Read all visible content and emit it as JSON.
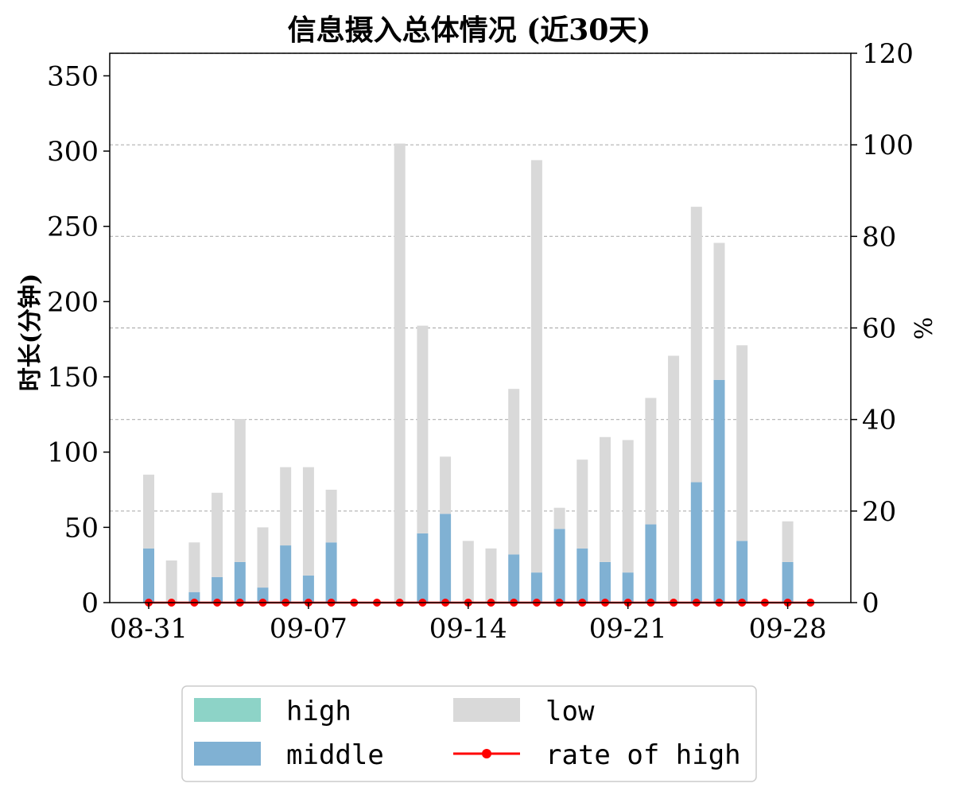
{
  "chart_data": {
    "type": "bar",
    "title": "信息摄入总体情况 (近30天)",
    "ylabel": "时长(分钟)",
    "y2label": "%",
    "ylim": [
      0,
      365
    ],
    "y2lim": [
      0,
      120
    ],
    "yticks": [
      0,
      50,
      100,
      150,
      200,
      250,
      300,
      350
    ],
    "y2ticks": [
      0,
      20,
      40,
      60,
      80,
      100,
      120
    ],
    "grid": "right-axis horizontal dashed",
    "stacked": true,
    "dates": [
      "08-31",
      "09-01",
      "09-02",
      "09-03",
      "09-04",
      "09-05",
      "09-06",
      "09-07",
      "09-08",
      "09-09",
      "09-10",
      "09-11",
      "09-12",
      "09-13",
      "09-14",
      "09-15",
      "09-16",
      "09-17",
      "09-18",
      "09-19",
      "09-20",
      "09-21",
      "09-22",
      "09-23",
      "09-24",
      "09-25",
      "09-26",
      "09-27",
      "09-28",
      "09-29"
    ],
    "xtick_labels": [
      "08-31",
      "09-07",
      "09-14",
      "09-21",
      "09-28"
    ],
    "series": [
      {
        "name": "high",
        "axis": "left",
        "color": "#8dd3c7",
        "values": [
          0,
          0,
          0,
          0,
          0,
          0,
          0,
          0,
          0,
          0,
          0,
          0,
          0,
          0,
          0,
          0,
          0,
          0,
          0,
          0,
          0,
          0,
          0,
          0,
          0,
          0,
          0,
          0,
          0,
          0
        ]
      },
      {
        "name": "middle",
        "axis": "left",
        "color": "#80b1d3",
        "values": [
          36,
          0,
          7,
          17,
          27,
          10,
          38,
          18,
          40,
          0,
          0,
          0,
          46,
          59,
          0,
          0,
          32,
          20,
          49,
          36,
          27,
          20,
          52,
          0,
          80,
          148,
          41,
          0,
          27,
          0
        ]
      },
      {
        "name": "low",
        "axis": "left",
        "color": "#d9d9d9",
        "values": [
          49,
          28,
          33,
          56,
          95,
          40,
          52,
          72,
          35,
          0,
          0,
          305,
          138,
          38,
          41,
          36,
          110,
          274,
          14,
          59,
          83,
          88,
          84,
          164,
          183,
          91,
          130,
          0,
          27,
          0
        ]
      },
      {
        "name": "rate of high",
        "axis": "right",
        "type": "line",
        "color": "#ff0000",
        "values": [
          0,
          0,
          0,
          0,
          0,
          0,
          0,
          0,
          0,
          0,
          0,
          0,
          0,
          0,
          0,
          0,
          0,
          0,
          0,
          0,
          0,
          0,
          0,
          0,
          0,
          0,
          0,
          0,
          0,
          0
        ]
      }
    ],
    "legend": {
      "position": "bottom-center",
      "columns": 2,
      "order": [
        "high",
        "low",
        "middle",
        "rate of high"
      ]
    }
  }
}
